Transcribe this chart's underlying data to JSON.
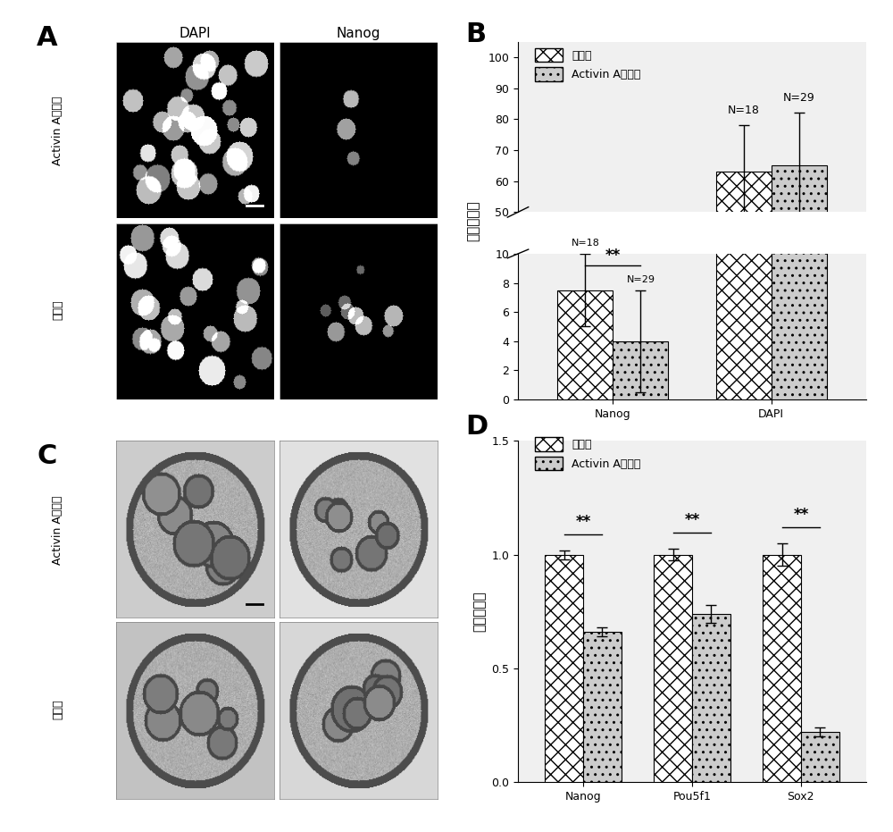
{
  "panel_A_label": "A",
  "panel_B_label": "B",
  "panel_C_label": "C",
  "panel_D_label": "D",
  "panel_B": {
    "ylabel": "细胞平均数",
    "categories": [
      "Nanog",
      "DAPI"
    ],
    "control_values": [
      7.5,
      63
    ],
    "activin_values": [
      4.0,
      65
    ],
    "control_errors": [
      2.5,
      15
    ],
    "activin_errors": [
      3.5,
      17
    ],
    "legend_control": "对照组",
    "legend_activin": "Activin A处理组",
    "bar_width": 0.35
  },
  "panel_D": {
    "ylabel": "相对表达量",
    "categories": [
      "Nanog",
      "Pou5f1",
      "Sox2"
    ],
    "control_values": [
      1.0,
      1.0,
      1.0
    ],
    "activin_values": [
      0.66,
      0.74,
      0.22
    ],
    "control_errors": [
      0.02,
      0.025,
      0.05
    ],
    "activin_errors": [
      0.02,
      0.04,
      0.02
    ],
    "ylim": [
      0.0,
      1.5
    ],
    "yticks": [
      0.0,
      0.5,
      1.0,
      1.5
    ],
    "legend_control": "对照组",
    "legend_activin": "Activin A处理组",
    "bar_width": 0.35
  },
  "panel_A": {
    "col_labels": [
      "DAPI",
      "Nanog"
    ],
    "row_labels": [
      "Activin A处理组",
      "对照组"
    ]
  },
  "panel_C": {
    "row_labels": [
      "Activin A处理组",
      "对照组"
    ]
  }
}
